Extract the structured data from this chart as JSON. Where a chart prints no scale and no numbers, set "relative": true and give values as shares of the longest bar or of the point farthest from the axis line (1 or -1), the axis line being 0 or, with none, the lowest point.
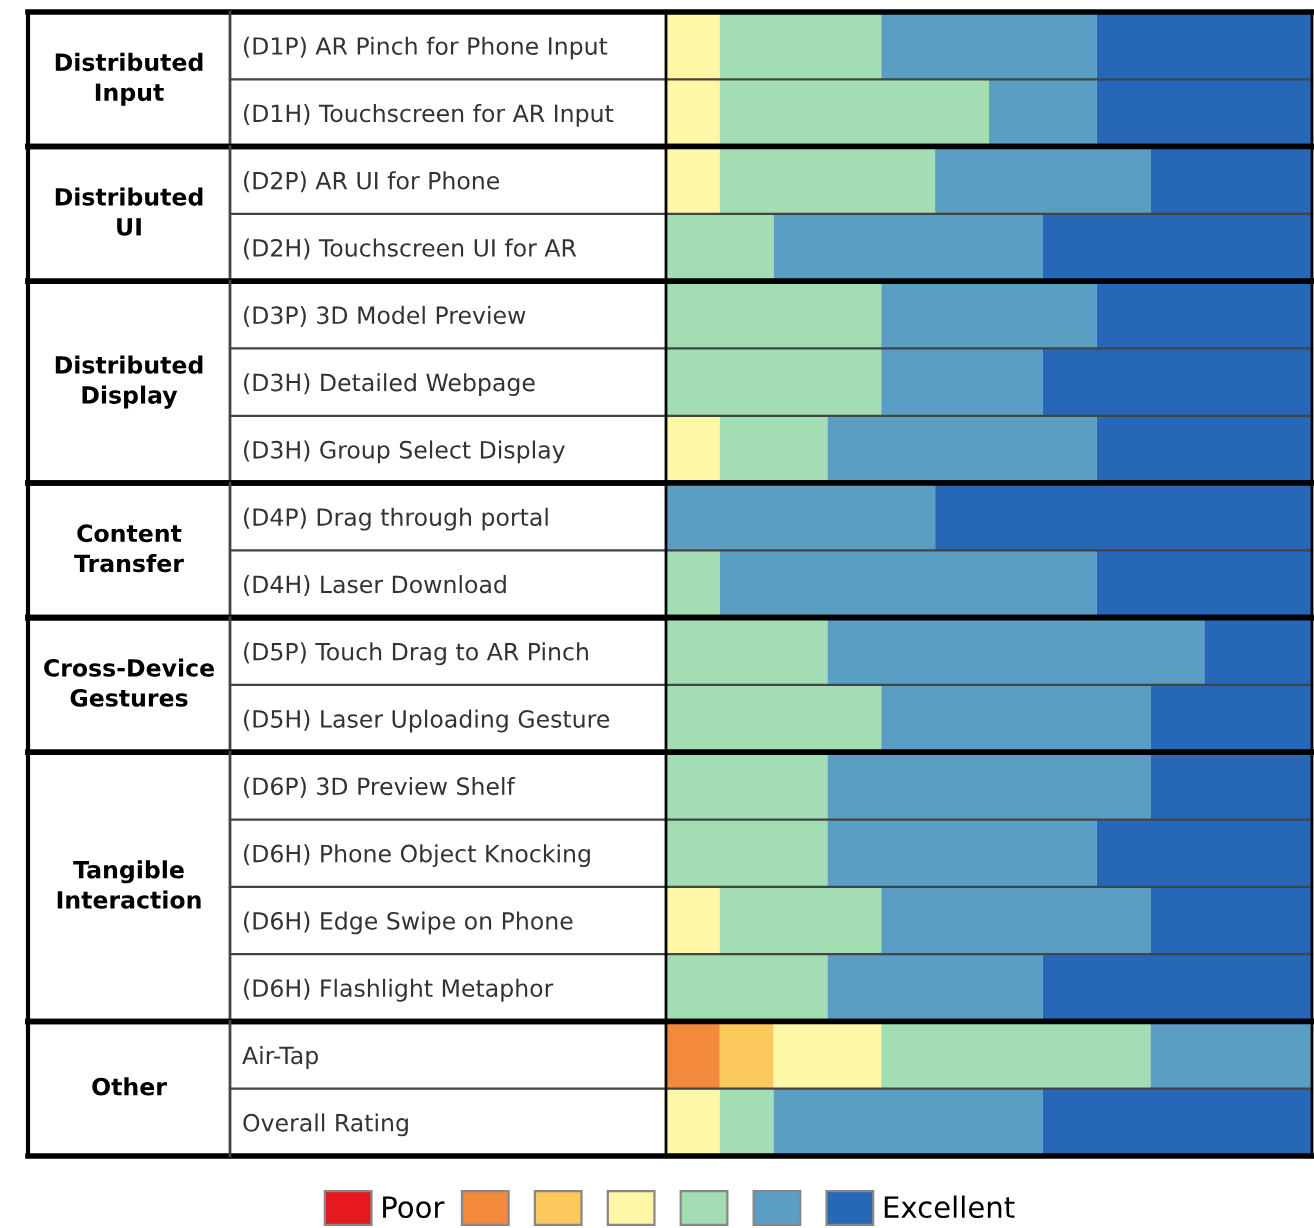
{
  "chart_data": [
    {
      "type": "bar",
      "orientation": "horizontal",
      "stacked": true,
      "relative": true,
      "tick_labels": "y",
      "title": "Distributed\nInput",
      "categories": [
        "(D1P) AR Pinch for Phone Input",
        "(D1H) Touchscreen for AR Input"
      ],
      "series": [
        {
          "color": "#fdf7a6",
          "values": [
            0.0833,
            0.0833
          ]
        },
        {
          "color": "#a2ddb4",
          "values": [
            0.25,
            0.4167
          ]
        },
        {
          "color": "#5b9ec3",
          "values": [
            0.3333,
            0.1667
          ]
        },
        {
          "color": "#2667b7",
          "values": [
            0.3333,
            0.3333
          ]
        }
      ]
    },
    {
      "type": "bar",
      "orientation": "horizontal",
      "stacked": true,
      "relative": true,
      "tick_labels": "y",
      "title": "Distributed\nUI",
      "categories": [
        "(D2P) AR UI for Phone",
        "(D2H) Touchscreen UI for AR"
      ],
      "series": [
        {
          "color": "#fdf7a6",
          "values": [
            0.0833,
            0
          ]
        },
        {
          "color": "#a2ddb4",
          "values": [
            0.3333,
            0.1667
          ]
        },
        {
          "color": "#5b9ec3",
          "values": [
            0.3333,
            0.4167
          ]
        },
        {
          "color": "#2667b7",
          "values": [
            0.25,
            0.4166
          ]
        }
      ]
    },
    {
      "type": "bar",
      "orientation": "horizontal",
      "stacked": true,
      "relative": true,
      "tick_labels": "y",
      "title": "Distributed\nDisplay",
      "categories": [
        "(D3P) 3D Model Preview",
        "(D3H) Detailed Webpage",
        "(D3H) Group Select Display"
      ],
      "series": [
        {
          "color": "#fdf7a6",
          "values": [
            0,
            0,
            0.0833
          ]
        },
        {
          "color": "#a2ddb4",
          "values": [
            0.3333,
            0.3333,
            0.1667
          ]
        },
        {
          "color": "#5b9ec3",
          "values": [
            0.3333,
            0.25,
            0.4167
          ]
        },
        {
          "color": "#2667b7",
          "values": [
            0.3333,
            0.4167,
            0.3333
          ]
        }
      ]
    },
    {
      "type": "bar",
      "orientation": "horizontal",
      "stacked": true,
      "relative": true,
      "tick_labels": "y",
      "title": "Content\nTransfer",
      "categories": [
        "(D4P) Drag through portal",
        "(D4H) Laser Download"
      ],
      "series": [
        {
          "color": "#a2ddb4",
          "values": [
            0,
            0.0833
          ]
        },
        {
          "color": "#5b9ec3",
          "values": [
            0.4167,
            0.5833
          ]
        },
        {
          "color": "#2667b7",
          "values": [
            0.5833,
            0.3333
          ]
        }
      ]
    },
    {
      "type": "bar",
      "orientation": "horizontal",
      "stacked": true,
      "relative": true,
      "tick_labels": "y",
      "title": "Cross-Device\nGestures",
      "categories": [
        "(D5P) Touch Drag to AR Pinch",
        "(D5H) Laser Uploading Gesture"
      ],
      "series": [
        {
          "color": "#a2ddb4",
          "values": [
            0.25,
            0.3333
          ]
        },
        {
          "color": "#5b9ec3",
          "values": [
            0.5833,
            0.4167
          ]
        },
        {
          "color": "#2667b7",
          "values": [
            0.1667,
            0.25
          ]
        }
      ]
    },
    {
      "type": "bar",
      "orientation": "horizontal",
      "stacked": true,
      "relative": true,
      "tick_labels": "y",
      "title": "Tangible\nInteraction",
      "categories": [
        "(D6P) 3D Preview Shelf",
        "(D6H) Phone Object Knocking",
        "(D6H) Edge Swipe on Phone",
        "(D6H) Flashlight Metaphor"
      ],
      "series": [
        {
          "color": "#fdf7a6",
          "values": [
            0,
            0,
            0.0833,
            0
          ]
        },
        {
          "color": "#a2ddb4",
          "values": [
            0.25,
            0.25,
            0.25,
            0.25
          ]
        },
        {
          "color": "#5b9ec3",
          "values": [
            0.5,
            0.4167,
            0.4167,
            0.3333
          ]
        },
        {
          "color": "#2667b7",
          "values": [
            0.25,
            0.3333,
            0.25,
            0.4167
          ]
        }
      ]
    },
    {
      "type": "bar",
      "orientation": "horizontal",
      "stacked": true,
      "relative": true,
      "tick_labels": "y",
      "title": "Other",
      "legend": "bottom",
      "categories": [
        "Air-Tap",
        "Overall Rating"
      ],
      "series": [
        {
          "name": "Poor",
          "color": "#e5191e",
          "values": [
            0,
            0
          ]
        },
        {
          "color": "#f3893b",
          "values": [
            0.0833,
            0
          ]
        },
        {
          "color": "#fbc85c",
          "values": [
            0.0833,
            0
          ]
        },
        {
          "color": "#fdf7a6",
          "values": [
            0.1667,
            0.0833
          ]
        },
        {
          "color": "#a2ddb4",
          "values": [
            0.4167,
            0.0833
          ]
        },
        {
          "color": "#5b9ec3",
          "values": [
            0.25,
            0.4167
          ]
        },
        {
          "name": "Excellent",
          "color": "#2667b7",
          "values": [
            0,
            0.4167
          ]
        }
      ]
    }
  ]
}
